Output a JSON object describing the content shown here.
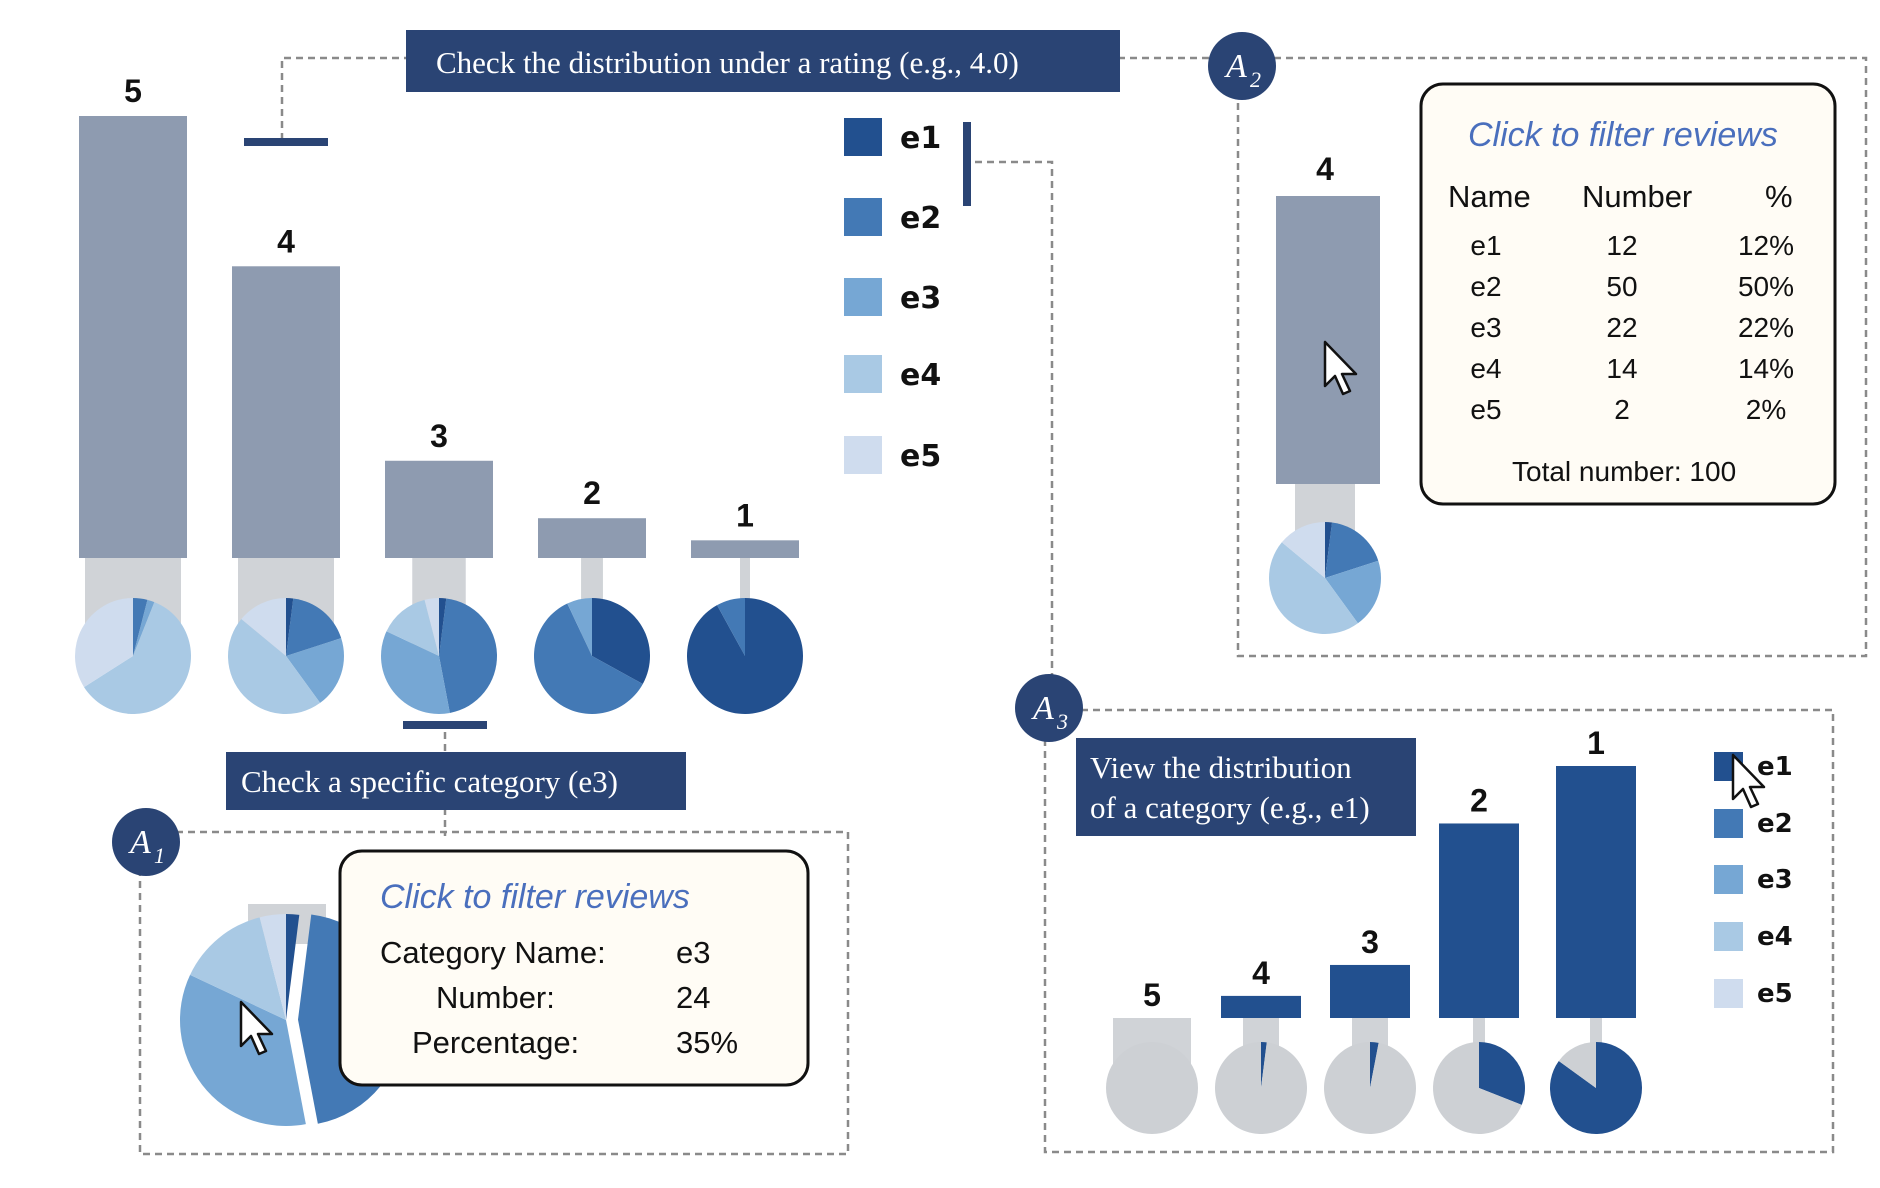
{
  "colors": {
    "e1": "#22508f",
    "e2": "#4379b5",
    "e3": "#76a7d4",
    "e4": "#a9c9e4",
    "e5": "#cfdcee",
    "bar": "#8e9bb0",
    "stem": "#d0d3d7",
    "navy": "#2a4474",
    "panel_bg": "#fffcf5",
    "grey_pie": "#cdd0d4"
  },
  "callouts": {
    "rating": "Check the distribution under a rating (e.g., 4.0)",
    "category": "Check a specific category (e3)",
    "distribution_line1": "View the distribution",
    "distribution_line2": "of a category (e.g., e1)"
  },
  "badges": {
    "a1": {
      "letter": "A",
      "sub": "1"
    },
    "a2": {
      "letter": "A",
      "sub": "2"
    },
    "a3": {
      "letter": "A",
      "sub": "3"
    }
  },
  "legend": [
    "e1",
    "e2",
    "e3",
    "e4",
    "e5"
  ],
  "chart_data": [
    {
      "type": "bar",
      "categories": [
        "5",
        "4",
        "3",
        "2",
        "1"
      ],
      "values": [
        100,
        66,
        22,
        9,
        4
      ],
      "pies": [
        [
          0.0,
          0.04,
          0.02,
          0.6,
          0.34
        ],
        [
          0.02,
          0.18,
          0.2,
          0.46,
          0.14
        ],
        [
          0.02,
          0.45,
          0.35,
          0.14,
          0.04
        ],
        [
          0.33,
          0.6,
          0.07,
          0.0,
          0.0
        ],
        [
          0.92,
          0.08,
          0.0,
          0.0,
          0.0
        ]
      ]
    },
    {
      "type": "bar",
      "categories": [
        "5",
        "4",
        "3",
        "2",
        "1"
      ],
      "values": [
        0,
        5,
        12,
        44,
        57
      ],
      "pie_fraction_e1": [
        0.0,
        0.02,
        0.03,
        0.31,
        0.85
      ]
    }
  ],
  "panel_a1": {
    "title": "Click to filter reviews",
    "rows": [
      {
        "label": "Category Name:",
        "value": "e3"
      },
      {
        "label": "Number:",
        "value": "24"
      },
      {
        "label": "Percentage:",
        "value": "35%"
      }
    ],
    "bar_label": "",
    "pie": [
      0.02,
      0.45,
      0.35,
      0.14,
      0.04
    ]
  },
  "panel_a2": {
    "bar_label": "4",
    "title": "Click to filter reviews",
    "headers": [
      "Name",
      "Number",
      "%"
    ],
    "rows": [
      [
        "e1",
        "12",
        "12%"
      ],
      [
        "e2",
        "50",
        "50%"
      ],
      [
        "e3",
        "22",
        "22%"
      ],
      [
        "e4",
        "14",
        "14%"
      ],
      [
        "e5",
        "2",
        "2%"
      ]
    ],
    "total": "Total number: 100",
    "pie": [
      0.02,
      0.18,
      0.2,
      0.46,
      0.14
    ]
  }
}
